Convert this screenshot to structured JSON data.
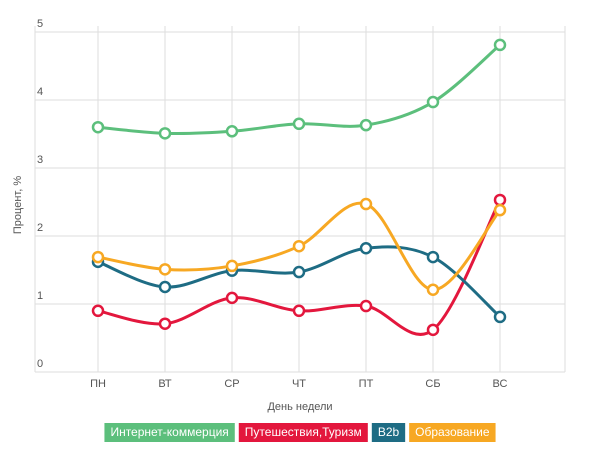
{
  "chart_data": {
    "type": "line",
    "x_label": "День недели",
    "y_label": "Процент, %",
    "categories": [
      "ПН",
      "ВТ",
      "СР",
      "ЧТ",
      "ПТ",
      "СБ",
      "ВС"
    ],
    "series": [
      {
        "name": "Интернет-коммерция",
        "color": "#5cbf7c",
        "values": [
          3.6,
          3.51,
          3.54,
          3.65,
          3.63,
          3.97,
          4.81
        ]
      },
      {
        "name": "Путешествия,Туризм",
        "color": "#e3173d",
        "values": [
          0.9,
          0.71,
          1.09,
          0.9,
          0.97,
          0.62,
          2.53
        ]
      },
      {
        "name": "B2b",
        "color": "#1e6c84",
        "values": [
          1.62,
          1.25,
          1.49,
          1.47,
          1.82,
          1.69,
          0.81
        ]
      },
      {
        "name": "Образование",
        "color": "#f7a823",
        "values": [
          1.69,
          1.51,
          1.56,
          1.85,
          2.47,
          1.21,
          2.38
        ]
      }
    ],
    "ylim": [
      0,
      5
    ],
    "yticks": [
      0,
      1,
      2,
      3,
      4,
      5
    ],
    "grid": true,
    "smooth": true,
    "legend": "bottom"
  }
}
